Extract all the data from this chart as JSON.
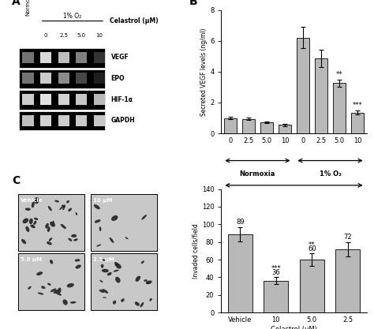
{
  "panel_B": {
    "categories": [
      "0",
      "2.5",
      "5.0",
      "10",
      "0",
      "2.5",
      "5.0",
      "10"
    ],
    "values": [
      1.0,
      0.95,
      0.72,
      0.55,
      6.2,
      4.85,
      3.25,
      1.35
    ],
    "errors": [
      0.08,
      0.08,
      0.06,
      0.06,
      0.7,
      0.55,
      0.25,
      0.12
    ],
    "bar_color": "#b8b8b8",
    "ylabel": "Secreted VEGF levels (ng/ml)",
    "ylim": [
      0,
      8
    ],
    "yticks": [
      0,
      2,
      4,
      6,
      8
    ],
    "sig_labels": [
      "",
      "",
      "",
      "",
      "",
      "",
      "**",
      "***"
    ],
    "xlabel_bottom": "Celastrol (μM)"
  },
  "panel_C_bar": {
    "categories": [
      "Vehicle",
      "10",
      "5.0",
      "2.5"
    ],
    "values": [
      89,
      36,
      60,
      72
    ],
    "errors": [
      8,
      4,
      7,
      8
    ],
    "bar_color": "#b8b8b8",
    "ylabel": "Invaded cells/field",
    "ylim": [
      0,
      140
    ],
    "yticks": [
      0,
      20,
      40,
      60,
      80,
      100,
      120,
      140
    ],
    "sig_c": [
      "",
      "***",
      "**",
      ""
    ],
    "xlabel_bottom": "Celastrol (μM)"
  },
  "panel_labels": {
    "A": "A",
    "B": "B",
    "C": "C"
  },
  "gel_labels": [
    "VEGF",
    "EPO",
    "HIF-1α",
    "GAPDH"
  ],
  "band_intensities": [
    [
      0.45,
      0.85,
      0.75,
      0.5,
      0.2
    ],
    [
      0.45,
      0.8,
      0.55,
      0.28,
      0.12
    ],
    [
      0.8,
      0.88,
      0.82,
      0.78,
      0.72
    ],
    [
      0.75,
      0.82,
      0.8,
      0.79,
      0.78
    ]
  ],
  "gel_hypoxia_label": "1% O₂",
  "gel_header": "Celastrol (μM)"
}
